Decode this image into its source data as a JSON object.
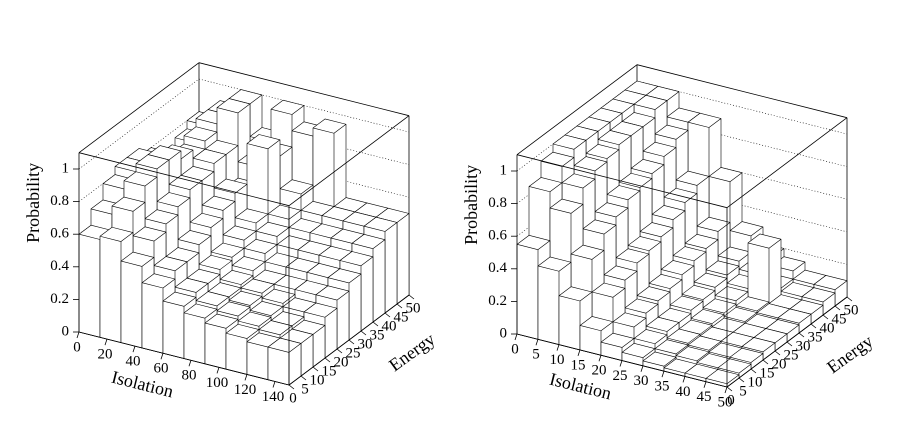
{
  "chart_data": [
    {
      "type": "lego",
      "x_label": "Isolation",
      "y_label": "Energy",
      "z_label": "Probability",
      "xlim": [
        0,
        150
      ],
      "ylim": [
        0,
        50
      ],
      "zlim": [
        0,
        1.1
      ],
      "xticks": [
        0,
        20,
        40,
        60,
        80,
        100,
        120,
        140
      ],
      "yticks": [
        0,
        5,
        10,
        15,
        20,
        25,
        30,
        35,
        40,
        45,
        50
      ],
      "zticks": [
        0,
        0.2,
        0.4,
        0.6,
        0.8,
        1
      ],
      "color": "#ffffff",
      "values": [
        [
          0.6,
          0.62,
          0.5,
          0.4,
          0.32,
          0.28,
          0.25,
          0.22,
          0.2,
          0.2
        ],
        [
          0.7,
          0.75,
          0.6,
          0.45,
          0.35,
          0.3,
          0.27,
          0.24,
          0.22,
          0.2
        ],
        [
          0.8,
          0.85,
          0.65,
          0.45,
          0.35,
          0.3,
          0.28,
          0.25,
          0.22,
          0.2
        ],
        [
          0.85,
          0.9,
          0.7,
          0.5,
          0.38,
          0.32,
          0.3,
          0.27,
          0.25,
          0.25
        ],
        [
          0.85,
          0.9,
          0.75,
          0.55,
          0.4,
          0.35,
          0.3,
          0.3,
          0.3,
          0.3
        ],
        [
          0.8,
          0.85,
          0.75,
          0.6,
          0.45,
          0.4,
          0.35,
          0.35,
          0.35,
          0.35
        ],
        [
          0.75,
          0.8,
          0.8,
          0.65,
          0.5,
          0.45,
          0.4,
          0.4,
          0.4,
          0.4
        ],
        [
          0.7,
          0.85,
          0.8,
          0.6,
          0.9,
          0.5,
          0.45,
          0.45,
          0.45,
          0.45
        ],
        [
          0.75,
          0.9,
          1.0,
          0.7,
          0.8,
          0.6,
          0.5,
          0.5,
          0.5,
          0.5
        ],
        [
          0.8,
          0.9,
          1.0,
          0.8,
          1.0,
          0.9,
          0.95,
          0.5,
          0.5,
          0.5
        ]
      ]
    },
    {
      "type": "lego",
      "x_label": "Isolation",
      "y_label": "Energy",
      "z_label": "Probability",
      "xlim": [
        0,
        50
      ],
      "ylim": [
        0,
        50
      ],
      "zlim": [
        0,
        1.1
      ],
      "xticks": [
        0,
        5,
        10,
        15,
        20,
        25,
        30,
        35,
        40,
        45,
        50
      ],
      "yticks": [
        0,
        5,
        10,
        15,
        20,
        25,
        30,
        35,
        40,
        45,
        50
      ],
      "zticks": [
        0,
        0.2,
        0.4,
        0.6,
        0.8,
        1
      ],
      "color": "#ffffff",
      "values": [
        [
          0.55,
          0.45,
          0.3,
          0.15,
          0.08,
          0.05,
          0.03,
          0.02,
          0.02,
          0.02
        ],
        [
          0.85,
          0.75,
          0.5,
          0.3,
          0.15,
          0.08,
          0.05,
          0.04,
          0.03,
          0.03
        ],
        [
          0.95,
          0.85,
          0.6,
          0.35,
          0.18,
          0.1,
          0.06,
          0.05,
          0.04,
          0.04
        ],
        [
          1.0,
          0.9,
          0.65,
          0.4,
          0.2,
          0.1,
          0.06,
          0.05,
          0.05,
          0.05
        ],
        [
          1.0,
          0.92,
          0.7,
          0.42,
          0.22,
          0.12,
          0.07,
          0.05,
          0.05,
          0.05
        ],
        [
          1.0,
          0.95,
          0.72,
          0.45,
          0.25,
          0.13,
          0.08,
          0.06,
          0.05,
          0.05
        ],
        [
          1.0,
          0.95,
          0.75,
          0.5,
          0.28,
          0.15,
          0.1,
          0.07,
          0.06,
          0.06
        ],
        [
          1.0,
          0.95,
          0.8,
          0.55,
          0.3,
          0.17,
          0.12,
          0.4,
          0.06,
          0.06
        ],
        [
          1.0,
          1.0,
          0.85,
          0.6,
          0.35,
          0.2,
          0.15,
          0.1,
          0.08,
          0.08
        ],
        [
          1.0,
          1.0,
          0.9,
          0.9,
          0.6,
          0.3,
          0.2,
          0.15,
          0.1,
          0.1
        ]
      ]
    }
  ]
}
